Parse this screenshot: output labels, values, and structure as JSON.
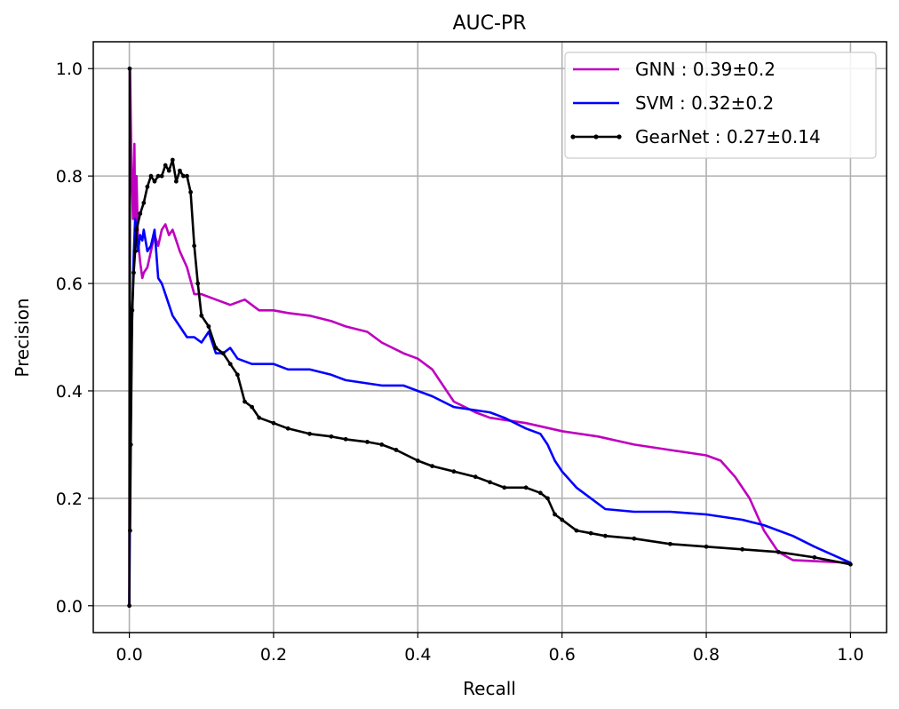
{
  "chart_data": {
    "type": "line",
    "title": "AUC-PR",
    "xlabel": "Recall",
    "ylabel": "Precision",
    "xlim": [
      -0.05,
      1.05
    ],
    "ylim": [
      -0.05,
      1.05
    ],
    "xticks": [
      "0.0",
      "0.2",
      "0.4",
      "0.6",
      "0.8",
      "1.0"
    ],
    "yticks": [
      "0.0",
      "0.2",
      "0.4",
      "0.6",
      "0.8",
      "1.0"
    ],
    "grid": true,
    "legend_position": "top-right",
    "series": [
      {
        "name": "GNN : 0.39±0.2",
        "color": "#bf00bf",
        "marker": "none",
        "x": [
          0.0,
          0.001,
          0.003,
          0.005,
          0.007,
          0.008,
          0.01,
          0.012,
          0.015,
          0.018,
          0.02,
          0.025,
          0.03,
          0.035,
          0.04,
          0.045,
          0.05,
          0.055,
          0.06,
          0.065,
          0.07,
          0.08,
          0.09,
          0.1,
          0.12,
          0.14,
          0.16,
          0.18,
          0.2,
          0.22,
          0.25,
          0.28,
          0.3,
          0.33,
          0.35,
          0.38,
          0.4,
          0.42,
          0.43,
          0.45,
          0.48,
          0.5,
          0.55,
          0.6,
          0.65,
          0.7,
          0.75,
          0.8,
          0.82,
          0.84,
          0.86,
          0.88,
          0.9,
          0.92,
          0.95,
          1.0
        ],
        "y": [
          0.0,
          1.0,
          0.82,
          0.72,
          0.86,
          0.72,
          0.8,
          0.68,
          0.64,
          0.61,
          0.62,
          0.63,
          0.66,
          0.69,
          0.67,
          0.7,
          0.71,
          0.69,
          0.7,
          0.68,
          0.66,
          0.63,
          0.58,
          0.58,
          0.57,
          0.56,
          0.57,
          0.55,
          0.55,
          0.545,
          0.54,
          0.53,
          0.52,
          0.51,
          0.49,
          0.47,
          0.46,
          0.44,
          0.42,
          0.38,
          0.36,
          0.35,
          0.34,
          0.325,
          0.315,
          0.3,
          0.29,
          0.28,
          0.27,
          0.24,
          0.2,
          0.14,
          0.1,
          0.085,
          0.083,
          0.08
        ]
      },
      {
        "name": "SVM : 0.32±0.2",
        "color": "#0000ff",
        "marker": "none",
        "x": [
          0.0,
          0.001,
          0.003,
          0.006,
          0.008,
          0.01,
          0.012,
          0.015,
          0.018,
          0.02,
          0.025,
          0.03,
          0.035,
          0.04,
          0.045,
          0.05,
          0.06,
          0.07,
          0.08,
          0.09,
          0.1,
          0.11,
          0.12,
          0.13,
          0.14,
          0.15,
          0.17,
          0.2,
          0.22,
          0.25,
          0.28,
          0.3,
          0.35,
          0.38,
          0.4,
          0.42,
          0.45,
          0.5,
          0.52,
          0.55,
          0.57,
          0.58,
          0.59,
          0.6,
          0.62,
          0.64,
          0.66,
          0.7,
          0.75,
          0.8,
          0.85,
          0.88,
          0.92,
          0.95,
          1.0
        ],
        "y": [
          0.0,
          0.2,
          0.48,
          0.65,
          0.72,
          0.7,
          0.66,
          0.69,
          0.68,
          0.7,
          0.66,
          0.67,
          0.7,
          0.61,
          0.6,
          0.58,
          0.54,
          0.52,
          0.5,
          0.5,
          0.49,
          0.51,
          0.47,
          0.47,
          0.48,
          0.46,
          0.45,
          0.45,
          0.44,
          0.44,
          0.43,
          0.42,
          0.41,
          0.41,
          0.4,
          0.39,
          0.37,
          0.36,
          0.35,
          0.33,
          0.32,
          0.3,
          0.27,
          0.25,
          0.22,
          0.2,
          0.18,
          0.175,
          0.175,
          0.17,
          0.16,
          0.15,
          0.13,
          0.11,
          0.08
        ]
      },
      {
        "name": "GearNet : 0.27±0.14",
        "color": "#000000",
        "marker": "dot",
        "x": [
          0.0,
          0.0005,
          0.001,
          0.002,
          0.004,
          0.006,
          0.008,
          0.01,
          0.015,
          0.02,
          0.025,
          0.03,
          0.035,
          0.04,
          0.045,
          0.05,
          0.055,
          0.06,
          0.065,
          0.07,
          0.075,
          0.08,
          0.085,
          0.09,
          0.095,
          0.1,
          0.11,
          0.12,
          0.13,
          0.14,
          0.15,
          0.16,
          0.17,
          0.18,
          0.2,
          0.22,
          0.25,
          0.28,
          0.3,
          0.33,
          0.35,
          0.37,
          0.4,
          0.42,
          0.45,
          0.48,
          0.5,
          0.52,
          0.55,
          0.57,
          0.58,
          0.59,
          0.6,
          0.62,
          0.64,
          0.66,
          0.7,
          0.75,
          0.8,
          0.85,
          0.9,
          0.95,
          1.0
        ],
        "y": [
          0.0,
          1.0,
          0.14,
          0.3,
          0.55,
          0.62,
          0.66,
          0.7,
          0.73,
          0.75,
          0.78,
          0.8,
          0.79,
          0.8,
          0.8,
          0.82,
          0.81,
          0.83,
          0.79,
          0.81,
          0.8,
          0.8,
          0.77,
          0.67,
          0.6,
          0.54,
          0.52,
          0.48,
          0.47,
          0.45,
          0.43,
          0.38,
          0.37,
          0.35,
          0.34,
          0.33,
          0.32,
          0.315,
          0.31,
          0.305,
          0.3,
          0.29,
          0.27,
          0.26,
          0.25,
          0.24,
          0.23,
          0.22,
          0.22,
          0.21,
          0.2,
          0.17,
          0.16,
          0.14,
          0.135,
          0.13,
          0.125,
          0.115,
          0.11,
          0.105,
          0.1,
          0.09,
          0.077
        ]
      }
    ]
  }
}
